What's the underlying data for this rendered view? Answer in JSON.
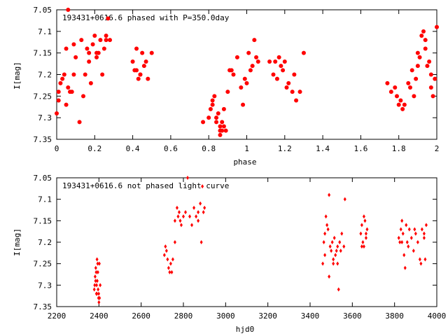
{
  "chart_data": [
    {
      "type": "scatter",
      "title": "193431+0616.6 phased with P=350.0day",
      "xlabel": "phase",
      "ylabel": "I[mag]",
      "xlim": [
        0,
        2
      ],
      "ylim": [
        7.05,
        7.35
      ],
      "y_inverted": true,
      "x_ticks": [
        "0",
        "0.2",
        "0.4",
        "0.6",
        "0.8",
        "1",
        "1.2",
        "1.4",
        "1.6",
        "1.8",
        "2"
      ],
      "y_ticks": [
        "7.05",
        "7.1",
        "7.15",
        "7.2",
        "7.25",
        "7.3",
        "7.35"
      ],
      "marker": "filled-circle",
      "color": "#ff0000",
      "series": [
        {
          "x": [
            0.0,
            0.01,
            0.02,
            0.03,
            0.04,
            0.05,
            0.06,
            0.06,
            0.07,
            0.08,
            0.09,
            0.1,
            0.12,
            0.14,
            0.15,
            0.16,
            0.17,
            0.18,
            0.19,
            0.2,
            0.21,
            0.22,
            0.23,
            0.24,
            0.25,
            0.26,
            0.27,
            0.28,
            0.4,
            0.41,
            0.42,
            0.43,
            0.44,
            0.45,
            0.46,
            0.47,
            0.48,
            0.5,
            0.77,
            0.8,
            0.81,
            0.82,
            0.83,
            0.84,
            0.85,
            0.86,
            0.86,
            0.87,
            0.87,
            0.88,
            0.89,
            0.9,
            0.91,
            0.93,
            0.95,
            0.97,
            0.98,
            1.0,
            1.01,
            1.02,
            1.04,
            1.05,
            1.06,
            1.14,
            1.15,
            1.16,
            1.17,
            1.18,
            1.19,
            1.2,
            1.22,
            1.24,
            1.26,
            1.28,
            1.3,
            1.74,
            1.76,
            1.78,
            1.79,
            1.8,
            1.81,
            1.83,
            1.85,
            1.87,
            1.88,
            1.89,
            1.9,
            1.91,
            1.92,
            1.93,
            1.94,
            1.95,
            1.96,
            1.97,
            1.98,
            1.99,
            2.0,
            0.01,
            0.05,
            0.09,
            0.13,
            0.17,
            0.21,
            0.26,
            0.42,
            0.44,
            0.82,
            0.84,
            0.86,
            0.88,
            0.92,
            0.99,
            1.03,
            1.12,
            1.21,
            1.25,
            1.82,
            1.86,
            1.9,
            1.94,
            1.97
          ],
          "y": [
            7.29,
            7.24,
            7.22,
            7.21,
            7.2,
            7.14,
            7.23,
            7.05,
            7.24,
            7.24,
            7.13,
            7.16,
            7.31,
            7.25,
            7.2,
            7.14,
            7.15,
            7.22,
            7.13,
            7.11,
            7.16,
            7.15,
            7.12,
            7.2,
            7.14,
            7.11,
            7.07,
            7.12,
            7.17,
            7.19,
            7.14,
            7.21,
            7.2,
            7.15,
            7.18,
            7.17,
            7.21,
            7.15,
            7.31,
            7.3,
            7.28,
            7.27,
            7.25,
            7.3,
            7.29,
            7.32,
            7.34,
            7.33,
            7.31,
            7.28,
            7.33,
            7.24,
            7.19,
            7.2,
            7.16,
            7.23,
            7.27,
            7.22,
            7.15,
            7.19,
            7.12,
            7.16,
            7.17,
            7.2,
            7.17,
            7.21,
            7.16,
            7.18,
            7.19,
            7.17,
            7.22,
            7.24,
            7.26,
            7.24,
            7.15,
            7.22,
            7.24,
            7.23,
            7.25,
            7.27,
            7.26,
            7.27,
            7.22,
            7.19,
            7.25,
            7.21,
            7.18,
            7.16,
            7.11,
            7.1,
            7.14,
            7.18,
            7.17,
            7.2,
            7.25,
            7.21,
            7.09,
            7.26,
            7.27,
            7.2,
            7.12,
            7.17,
            7.15,
            7.12,
            7.19,
            7.2,
            7.26,
            7.31,
            7.33,
            7.32,
            7.19,
            7.21,
            7.18,
            7.17,
            7.23,
            7.2,
            7.28,
            7.23,
            7.15,
            7.12,
            7.23
          ]
        }
      ]
    },
    {
      "type": "scatter",
      "title": "193431+0616.6 not phased light curve",
      "xlabel": "hjd0",
      "ylabel": "I[mag]",
      "xlim": [
        2200,
        4000
      ],
      "ylim": [
        7.05,
        7.35
      ],
      "y_inverted": true,
      "x_ticks": [
        "2200",
        "2400",
        "2600",
        "2800",
        "3000",
        "3200",
        "3400",
        "3600",
        "3800",
        "4000"
      ],
      "y_ticks": [
        "7.05",
        "7.1",
        "7.15",
        "7.2",
        "7.25",
        "7.3",
        "7.35"
      ],
      "marker": "filled-diamond",
      "color": "#ff0000",
      "series": [
        {
          "x": [
            2378,
            2382,
            2385,
            2387,
            2389,
            2390,
            2392,
            2394,
            2396,
            2398,
            2400,
            2402,
            2380,
            2384,
            2388,
            2391,
            2395,
            2399,
            2403,
            2406,
            2710,
            2715,
            2720,
            2725,
            2730,
            2735,
            2740,
            2745,
            2750,
            2760,
            2770,
            2780,
            2790,
            2800,
            2810,
            2820,
            2830,
            2840,
            2850,
            2860,
            2870,
            2880,
            2890,
            2895,
            2900,
            2760,
            2775,
            2785,
            2870,
            2885,
            3460,
            3465,
            3470,
            3475,
            3480,
            3485,
            3490,
            3495,
            3500,
            3505,
            3510,
            3515,
            3520,
            3525,
            3530,
            3535,
            3540,
            3545,
            3550,
            3560,
            3565,
            3470,
            3490,
            3510,
            3530,
            3640,
            3645,
            3650,
            3655,
            3660,
            3665,
            3670,
            3645,
            3655,
            3665,
            3820,
            3825,
            3830,
            3835,
            3840,
            3845,
            3850,
            3855,
            3860,
            3870,
            3880,
            3890,
            3900,
            3910,
            3920,
            3930,
            3940,
            3945,
            3950,
            3835,
            3865,
            3895,
            3925,
            3940
          ],
          "y": [
            7.31,
            7.28,
            7.26,
            7.27,
            7.3,
            7.32,
            7.29,
            7.25,
            7.31,
            7.33,
            7.34,
            7.25,
            7.3,
            7.29,
            7.32,
            7.24,
            7.27,
            7.32,
            7.33,
            7.3,
            7.23,
            7.21,
            7.22,
            7.24,
            7.26,
            7.27,
            7.25,
            7.27,
            7.24,
            7.15,
            7.12,
            7.13,
            7.16,
            7.14,
            7.13,
            7.05,
            7.14,
            7.16,
            7.12,
            7.14,
            7.13,
            7.11,
            7.07,
            7.13,
            7.12,
            7.2,
            7.14,
            7.15,
            7.15,
            7.2,
            7.25,
            7.2,
            7.18,
            7.14,
            7.16,
            7.17,
            7.09,
            7.21,
            7.22,
            7.2,
            7.24,
            7.19,
            7.23,
            7.22,
            7.25,
            7.31,
            7.2,
            7.22,
            7.18,
            7.21,
            7.1,
            7.23,
            7.28,
            7.25,
            7.21,
            7.18,
            7.16,
            7.2,
            7.21,
            7.15,
            7.19,
            7.17,
            7.21,
            7.14,
            7.18,
            7.19,
            7.2,
            7.17,
            7.15,
            7.18,
            7.23,
            7.26,
            7.16,
            7.2,
            7.17,
            7.19,
            7.22,
            7.18,
            7.2,
            7.24,
            7.17,
            7.19,
            7.24,
            7.16,
            7.2,
            7.21,
            7.17,
            7.25,
            7.18
          ]
        }
      ]
    }
  ]
}
